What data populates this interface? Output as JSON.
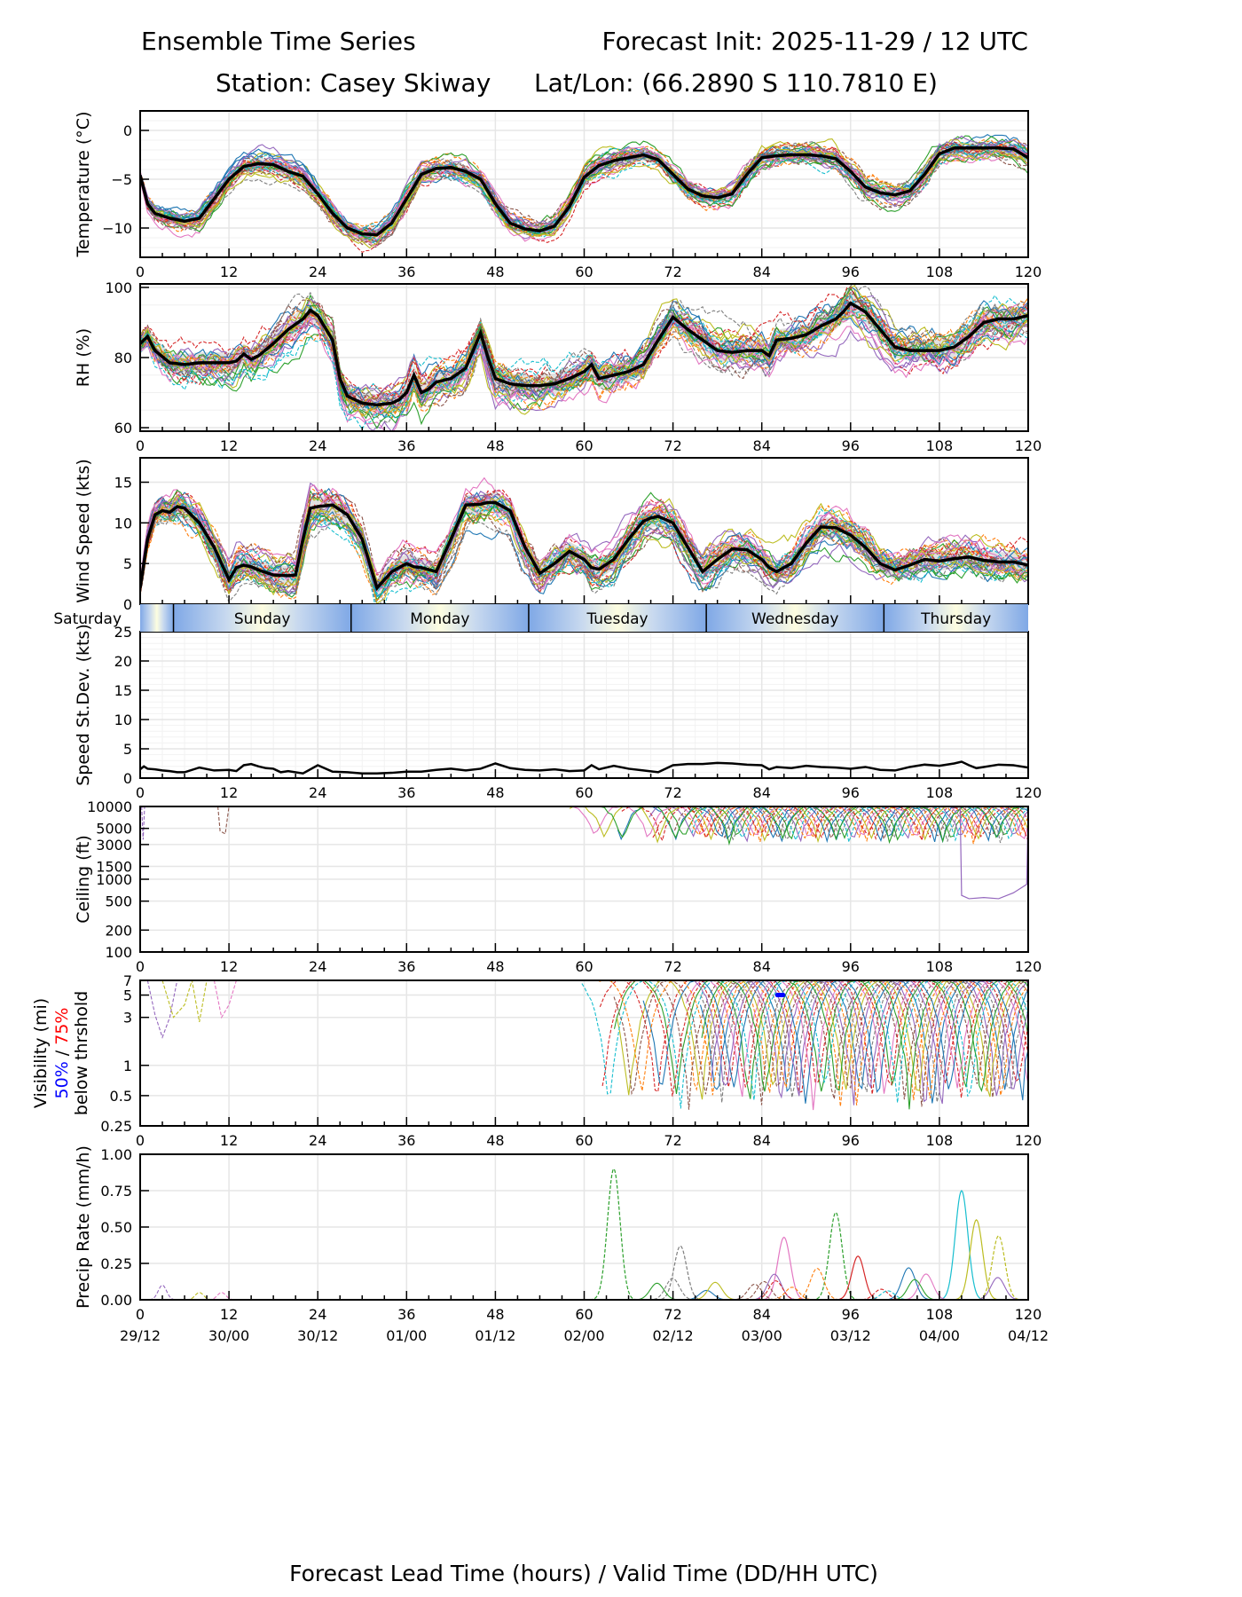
{
  "header": {
    "title_left": "Ensemble Time Series",
    "title_right": "Forecast Init: 2025-11-29 / 12 UTC",
    "station": "Station: Casey Skiway",
    "latlon": "Lat/Lon: (66.2890 S 110.7810 E)"
  },
  "colors": {
    "members": [
      "#1f77b4",
      "#ff7f0e",
      "#2ca02c",
      "#d62728",
      "#9467bd",
      "#8c564b",
      "#e377c2",
      "#7f7f7f",
      "#bcbd22",
      "#17becf"
    ],
    "mean": "#000000",
    "spread": "#d9d9d9",
    "grid": "#e6e6e6",
    "vis_50": "#0000ff",
    "vis_75": "#ff0000",
    "day_band_edge": "#7fa8e6",
    "day_band_center": "#fdfde0"
  },
  "chart_data": [
    {
      "id": "temperature",
      "type": "line",
      "ylabel": "Temperature (°C)",
      "ylim": [
        -13,
        2
      ],
      "yticks": [
        0,
        -5,
        -10
      ],
      "ytick_labels": [
        "0",
        "−5",
        "−10"
      ],
      "grid": true,
      "mean": {
        "x": [
          0,
          1,
          2,
          4,
          6,
          8,
          10,
          12,
          14,
          16,
          18,
          20,
          22,
          24,
          26,
          28,
          30,
          32,
          34,
          36,
          38,
          40,
          42,
          44,
          46,
          48,
          50,
          52,
          54,
          56,
          58,
          60,
          62,
          64,
          66,
          68,
          70,
          72,
          74,
          76,
          78,
          80,
          82,
          84,
          86,
          88,
          90,
          92,
          94,
          96,
          98,
          100,
          102,
          104,
          106,
          108,
          110,
          112,
          114,
          116,
          118,
          120
        ],
        "y": [
          -4.6,
          -7.5,
          -8.5,
          -9.0,
          -9.3,
          -9.0,
          -7.0,
          -5.0,
          -3.7,
          -3.4,
          -3.5,
          -4.2,
          -4.7,
          -6.5,
          -8.5,
          -10.0,
          -10.6,
          -10.7,
          -9.5,
          -7.0,
          -4.5,
          -3.9,
          -3.8,
          -4.2,
          -5.0,
          -7.5,
          -9.5,
          -10.1,
          -10.3,
          -9.8,
          -7.8,
          -4.8,
          -3.6,
          -3.1,
          -2.8,
          -2.5,
          -3.0,
          -4.5,
          -6.0,
          -6.7,
          -6.9,
          -6.5,
          -4.5,
          -2.8,
          -2.6,
          -2.5,
          -2.5,
          -2.6,
          -2.9,
          -4.2,
          -5.8,
          -6.4,
          -6.6,
          -6.2,
          -4.5,
          -2.4,
          -1.8,
          -1.8,
          -1.8,
          -1.8,
          -1.9,
          -2.8
        ]
      },
      "spread_halfwidth": 0.6
    },
    {
      "id": "rh",
      "type": "line",
      "ylabel": "RH (%)",
      "ylim": [
        59,
        101
      ],
      "yticks": [
        100,
        80,
        60
      ],
      "ytick_labels": [
        "100",
        "80",
        "60"
      ],
      "grid": true,
      "mean": {
        "x": [
          0,
          1,
          2,
          4,
          6,
          8,
          10,
          12,
          13,
          14,
          15,
          16,
          18,
          20,
          22,
          23,
          24,
          26,
          27,
          28,
          30,
          32,
          34,
          35,
          36,
          37,
          38,
          39,
          40,
          42,
          44,
          46,
          47,
          48,
          50,
          52,
          54,
          56,
          58,
          60,
          61,
          62,
          64,
          66,
          68,
          70,
          72,
          74,
          76,
          78,
          80,
          82,
          84,
          85,
          86,
          88,
          90,
          92,
          94,
          95,
          96,
          98,
          100,
          102,
          104,
          106,
          108,
          110,
          112,
          114,
          116,
          118,
          120
        ],
        "y": [
          84,
          86,
          82,
          78.5,
          78,
          78.5,
          78.5,
          78.5,
          79,
          81,
          79.5,
          80.5,
          84,
          88,
          91,
          93.5,
          92,
          85,
          74,
          69,
          67,
          66.5,
          67,
          68,
          70,
          75,
          70,
          71,
          73,
          74,
          77,
          87,
          80,
          74,
          72.5,
          72,
          72,
          72.5,
          74,
          76,
          78,
          74,
          75,
          76,
          78,
          85,
          91.5,
          88,
          85,
          82,
          81.5,
          82,
          82,
          80.5,
          85,
          85.5,
          86.5,
          89,
          91,
          93,
          95.5,
          93,
          88,
          83,
          82,
          82,
          82,
          83,
          86,
          90,
          91,
          91,
          92
        ]
      },
      "spread_halfwidth": 3.0
    },
    {
      "id": "wind_speed",
      "type": "line",
      "ylabel": "Wind Speed (kts)",
      "ylim": [
        0,
        18
      ],
      "yticks": [
        0,
        5,
        10,
        15
      ],
      "ytick_labels": [
        "0",
        "5",
        "10",
        "15"
      ],
      "grid": true,
      "mean": {
        "x": [
          0,
          1,
          2,
          3,
          4,
          5,
          6,
          8,
          10,
          12,
          13,
          14,
          15,
          16,
          18,
          20,
          21,
          22,
          23,
          24,
          26,
          28,
          30,
          32,
          34,
          36,
          37,
          38,
          40,
          42,
          44,
          46,
          47,
          48,
          49,
          50,
          52,
          54,
          56,
          58,
          60,
          61,
          62,
          64,
          66,
          68,
          69,
          70,
          72,
          74,
          76,
          78,
          80,
          82,
          84,
          85,
          86,
          88,
          90,
          92,
          94,
          96,
          98,
          100,
          102,
          104,
          106,
          108,
          110,
          112,
          114,
          116,
          118,
          120
        ],
        "y": [
          2,
          8,
          11,
          11.5,
          11.3,
          12,
          11.8,
          10,
          7,
          3,
          4.5,
          4.8,
          4.6,
          4.2,
          3.6,
          3.5,
          3.6,
          8,
          11.8,
          12,
          12.2,
          11,
          8,
          2,
          4,
          5,
          4.6,
          4.5,
          4,
          8,
          12.2,
          12.3,
          12.5,
          12.5,
          12,
          11.5,
          7,
          3.8,
          5,
          6.5,
          5.5,
          4.5,
          4.3,
          5.5,
          8,
          10.2,
          10.6,
          10.8,
          10,
          7,
          4,
          5.5,
          6.8,
          6.7,
          5.5,
          4.5,
          4,
          5,
          7.5,
          9.5,
          9.4,
          8.5,
          7,
          5,
          4.2,
          4.8,
          5.5,
          5.3,
          5.6,
          5.8,
          5.4,
          5.2,
          5.2,
          4.8
        ]
      },
      "spread_halfwidth": 1.2
    },
    {
      "id": "speed_stdev",
      "type": "line",
      "ylabel": "Speed St.Dev. (kts)",
      "ylim": [
        0,
        25
      ],
      "yticks": [
        0,
        5,
        10,
        15,
        20,
        25
      ],
      "ytick_labels": [
        "0",
        "5",
        "10",
        "15",
        "20",
        "25"
      ],
      "grid": true,
      "values": {
        "x": [
          0,
          0.5,
          1,
          2,
          3,
          4,
          5,
          6,
          8,
          10,
          12,
          13,
          14,
          15,
          16,
          17,
          18,
          19,
          20,
          22,
          24,
          26,
          28,
          30,
          32,
          34,
          36,
          38,
          40,
          42,
          44,
          46,
          48,
          50,
          52,
          54,
          56,
          58,
          60,
          61,
          62,
          64,
          66,
          68,
          70,
          72,
          74,
          76,
          78,
          80,
          82,
          84,
          85,
          86,
          88,
          90,
          92,
          94,
          96,
          98,
          100,
          102,
          104,
          106,
          108,
          110,
          111,
          112,
          113,
          114,
          116,
          118,
          120
        ],
        "y": [
          1.5,
          2.0,
          1.6,
          1.5,
          1.3,
          1.2,
          1.0,
          1.0,
          1.8,
          1.3,
          1.4,
          1.2,
          2.2,
          2.4,
          2.0,
          1.7,
          1.6,
          1.0,
          1.2,
          0.8,
          2.2,
          1.1,
          1.0,
          0.8,
          0.8,
          0.9,
          1.1,
          1.1,
          1.4,
          1.6,
          1.3,
          1.6,
          2.5,
          1.7,
          1.4,
          1.3,
          1.5,
          1.2,
          1.3,
          2.2,
          1.5,
          2.1,
          1.6,
          1.3,
          1.0,
          2.2,
          2.4,
          2.4,
          2.6,
          2.5,
          2.3,
          2.2,
          1.5,
          1.9,
          1.7,
          2.1,
          1.9,
          1.8,
          1.6,
          1.9,
          1.4,
          1.3,
          1.9,
          2.3,
          2.1,
          2.5,
          2.8,
          2.2,
          1.7,
          1.9,
          2.3,
          2.2,
          1.8
        ]
      }
    },
    {
      "id": "ceiling",
      "type": "line",
      "ylabel": "Ceiling (ft)",
      "yscale": "log",
      "ylim": [
        100,
        10000
      ],
      "yticks": [
        10000,
        5000,
        3000,
        1500,
        1000,
        500,
        200,
        100
      ],
      "ytick_labels": [
        "10000",
        "5000",
        "3000",
        "1500",
        "1000",
        "500",
        "200",
        "100"
      ],
      "grid": true,
      "note": "Individual member traces only; most near top of axis after hour 58; one member drops to ~500 ft from hour 111 to 120"
    },
    {
      "id": "visibility",
      "type": "line",
      "ylabel_lines": [
        "Visibility (mi)",
        "50%",
        "/",
        "75%",
        "below thrshold"
      ],
      "yscale": "log",
      "ylim": [
        0.25,
        7
      ],
      "yticks": [
        7,
        5,
        3,
        1,
        0.5,
        0.25
      ],
      "ytick_labels": [
        "7",
        "5",
        "3",
        "1",
        "0.5",
        "0.25"
      ],
      "grid": true,
      "threshold_50_marker": {
        "x": 86.5,
        "y": 5
      }
    },
    {
      "id": "precip_rate",
      "type": "line",
      "ylabel": "Precip Rate (mm/h)",
      "ylim": [
        0,
        1
      ],
      "yticks": [
        0,
        0.25,
        0.5,
        0.75,
        1.0
      ],
      "ytick_labels": [
        "0.00",
        "0.25",
        "0.50",
        "0.75",
        "1.00"
      ],
      "grid": true,
      "peaks": [
        {
          "x": 64,
          "y": 0.9,
          "member_color_index": 2
        },
        {
          "x": 111,
          "y": 0.75,
          "member_color_index": 9
        },
        {
          "x": 94,
          "y": 0.6,
          "member_color_index": 2
        },
        {
          "x": 113,
          "y": 0.55,
          "member_color_index": 8
        },
        {
          "x": 116,
          "y": 0.44,
          "member_color_index": 8
        },
        {
          "x": 87,
          "y": 0.43,
          "member_color_index": 6
        },
        {
          "x": 73,
          "y": 0.37,
          "member_color_index": 7
        },
        {
          "x": 97,
          "y": 0.3,
          "member_color_index": 3
        }
      ]
    }
  ],
  "x_axis": {
    "xlim": [
      0,
      120
    ],
    "ticks": [
      0,
      12,
      24,
      36,
      48,
      60,
      72,
      84,
      96,
      108,
      120
    ],
    "tick_labels": [
      "0",
      "12",
      "24",
      "36",
      "48",
      "60",
      "72",
      "84",
      "96",
      "108",
      "120"
    ],
    "valid_time_labels": [
      "29/12",
      "30/00",
      "30/12",
      "01/00",
      "01/12",
      "02/00",
      "02/12",
      "03/00",
      "03/12",
      "04/00",
      "04/12"
    ],
    "xlabel": "Forecast Lead Time (hours) / Valid Time (DD/HH UTC)"
  },
  "day_band": {
    "days": [
      {
        "label": "Saturday",
        "start": 0,
        "end": 4.5
      },
      {
        "label": "Sunday",
        "start": 4.5,
        "end": 28.5
      },
      {
        "label": "Monday",
        "start": 28.5,
        "end": 52.5
      },
      {
        "label": "Tuesday",
        "start": 52.5,
        "end": 76.5
      },
      {
        "label": "Wednesday",
        "start": 76.5,
        "end": 100.5
      },
      {
        "label": "Thursday",
        "start": 100.5,
        "end": 120
      }
    ]
  }
}
